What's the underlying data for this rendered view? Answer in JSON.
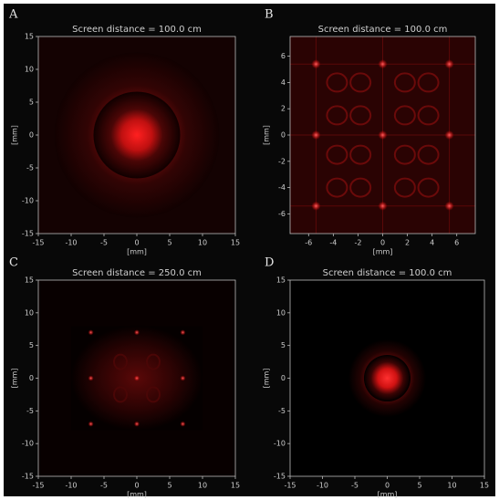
{
  "chart_data": [
    {
      "type": "image",
      "panel_label": "A",
      "title": "Screen distance = 100.0 cm",
      "xlabel": "[mm]",
      "ylabel": "[mm]",
      "xlim": [
        -15,
        15
      ],
      "ylim": [
        -15,
        15
      ],
      "xticks": [
        -15,
        -10,
        -5,
        0,
        5,
        10,
        15
      ],
      "yticks": [
        -15,
        -10,
        -5,
        0,
        5,
        10,
        15
      ]
    },
    {
      "type": "image",
      "panel_label": "B",
      "title": "Screen distance = 100.0 cm",
      "xlabel": "[mm]",
      "ylabel": "[mm]",
      "xlim": [
        -7.5,
        7.5
      ],
      "ylim": [
        -7.5,
        7.5
      ],
      "xticks": [
        -6,
        -4,
        -2,
        0,
        2,
        4,
        6
      ],
      "yticks": [
        -6,
        -4,
        -2,
        0,
        2,
        4,
        6
      ]
    },
    {
      "type": "image",
      "panel_label": "C",
      "title": "Screen distance = 250.0 cm",
      "xlabel": "[mm]",
      "ylabel": "[mm]",
      "xlim": [
        -15,
        15
      ],
      "ylim": [
        -15,
        15
      ],
      "xticks": [
        -15,
        -10,
        -5,
        0,
        5,
        10,
        15
      ],
      "yticks": [
        -15,
        -10,
        -5,
        0,
        5,
        10,
        15
      ]
    },
    {
      "type": "image",
      "panel_label": "D",
      "title": "Screen distance = 100.0 cm",
      "xlabel": "[mm]",
      "ylabel": "[mm]",
      "xlim": [
        -15,
        15
      ],
      "ylim": [
        -15,
        15
      ],
      "xticks": [
        -15,
        -10,
        -5,
        0,
        5,
        10,
        15
      ],
      "yticks": [
        -15,
        -10,
        -5,
        0,
        5,
        10,
        15
      ]
    }
  ]
}
